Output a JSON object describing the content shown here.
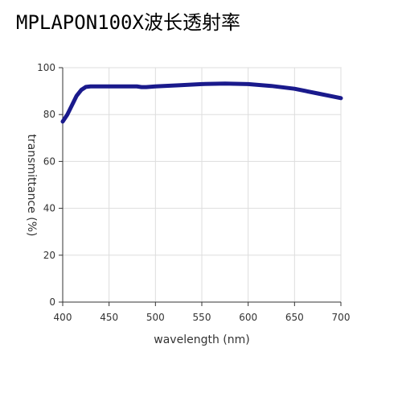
{
  "chart_data": {
    "type": "line",
    "title": "MPLAPON100X波长透射率",
    "x_label": "wavelength (nm)",
    "y_label": "transmittance (%)",
    "series": [
      {
        "name": "MPLAPON100X",
        "color": "#1a1a8c",
        "x": [
          400,
          405,
          410,
          415,
          420,
          425,
          430,
          440,
          450,
          460,
          470,
          480,
          485,
          490,
          500,
          525,
          550,
          575,
          600,
          625,
          650,
          675,
          700
        ],
        "values": [
          77,
          80,
          84,
          88,
          90.5,
          91.8,
          92,
          92,
          92,
          92,
          92,
          92,
          91.7,
          91.7,
          92,
          92.5,
          93,
          93.2,
          93,
          92.2,
          91,
          89,
          87
        ]
      }
    ],
    "xlim": [
      400,
      700
    ],
    "xticks": [
      400,
      450,
      500,
      550,
      600,
      650,
      700
    ],
    "ylim": [
      0,
      100
    ],
    "yticks": [
      0,
      20,
      40,
      60,
      80,
      100
    ],
    "grid": true
  }
}
